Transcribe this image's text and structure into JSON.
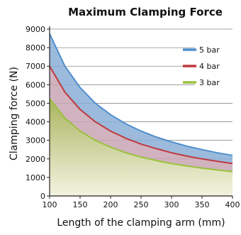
{
  "chart_data": {
    "type": "area",
    "title": "Maximum Clamping Force",
    "xlabel": "Length of the clamping arm (mm)",
    "ylabel": "Clamping force (N)",
    "xlim": [
      100,
      400
    ],
    "ylim": [
      0,
      9000
    ],
    "x_ticks": [
      100,
      150,
      200,
      250,
      300,
      350,
      400
    ],
    "y_ticks": [
      0,
      1000,
      2000,
      3000,
      4000,
      5000,
      6000,
      7000,
      8000,
      9000
    ],
    "grid": "horizontal",
    "legend_position": "right",
    "x": [
      100,
      125,
      150,
      175,
      200,
      225,
      250,
      275,
      300,
      325,
      350,
      375,
      400
    ],
    "series": [
      {
        "name": "5 bar",
        "color": "#4f8fce",
        "fill_color": "#8aaed6",
        "values": [
          8750,
          7000,
          5850,
          5000,
          4380,
          3890,
          3500,
          3180,
          2920,
          2690,
          2500,
          2330,
          2190
        ]
      },
      {
        "name": "4 bar",
        "color": "#c0393e",
        "fill_color": "#c9a6b4",
        "values": [
          7000,
          5600,
          4670,
          4000,
          3500,
          3110,
          2800,
          2550,
          2330,
          2150,
          2000,
          1870,
          1750
        ]
      },
      {
        "name": "3 bar",
        "color": "#9ac13b",
        "fill_color": "#c2c893",
        "values": [
          5250,
          4200,
          3500,
          3000,
          2630,
          2330,
          2100,
          1910,
          1750,
          1620,
          1500,
          1400,
          1310
        ]
      }
    ]
  }
}
